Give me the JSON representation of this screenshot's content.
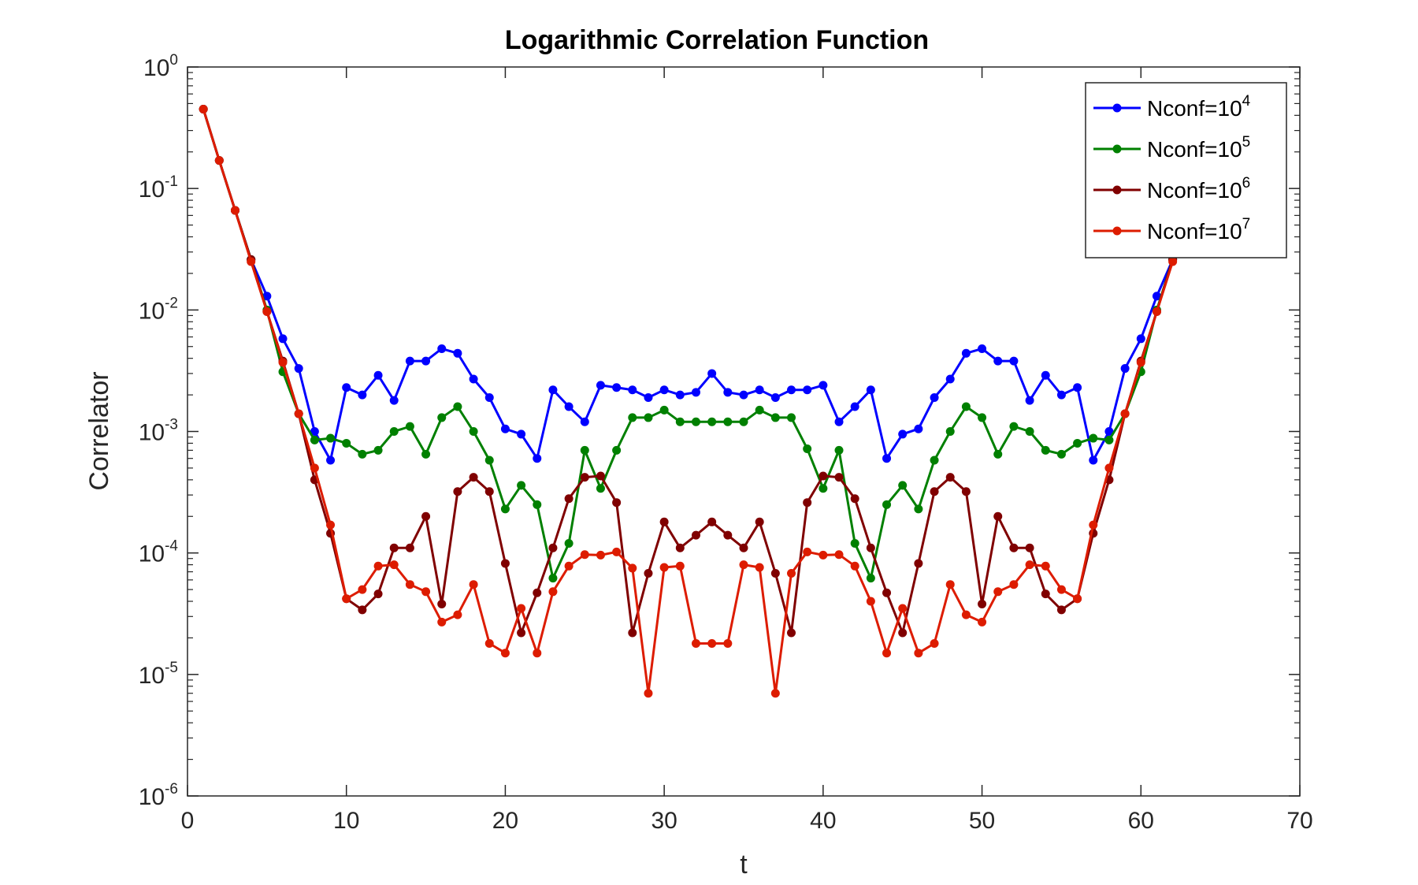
{
  "chart_data": {
    "type": "line",
    "title": "Logarithmic Correlation Function",
    "xlabel": "t",
    "ylabel": "Correlator",
    "xlim": [
      0,
      70
    ],
    "ylim": [
      1e-06,
      1
    ],
    "yscale": "log",
    "grid": false,
    "legend_position": "top-right",
    "x_ticks": [
      "0",
      "10",
      "20",
      "30",
      "40",
      "50",
      "60",
      "70"
    ],
    "y_ticks": [
      {
        "base": "10",
        "exp": "0"
      },
      {
        "base": "10",
        "exp": "-1"
      },
      {
        "base": "10",
        "exp": "-2"
      },
      {
        "base": "10",
        "exp": "-3"
      },
      {
        "base": "10",
        "exp": "-4"
      },
      {
        "base": "10",
        "exp": "-5"
      },
      {
        "base": "10",
        "exp": "-6"
      }
    ],
    "x": [
      1,
      2,
      3,
      4,
      5,
      6,
      7,
      8,
      9,
      10,
      11,
      12,
      13,
      14,
      15,
      16,
      17,
      18,
      19,
      20,
      21,
      22,
      23,
      24,
      25,
      26,
      27,
      28,
      29,
      30,
      31,
      32,
      33,
      34,
      35,
      36,
      37,
      38,
      39,
      40,
      41,
      42,
      43,
      44,
      45,
      46,
      47,
      48,
      49,
      50,
      51,
      52,
      53,
      54,
      55,
      56,
      57,
      58,
      59,
      60,
      61,
      62
    ],
    "series": [
      {
        "name_base": "Nconf=10",
        "name_exp": "4",
        "color": "#0000ff",
        "values": [
          0.45,
          0.17,
          0.066,
          0.026,
          0.013,
          0.0058,
          0.0033,
          0.001,
          0.00058,
          0.0023,
          0.002,
          0.0029,
          0.0018,
          0.0038,
          0.0038,
          0.0048,
          0.0044,
          0.0027,
          0.0019,
          0.00105,
          0.00095,
          0.0006,
          0.0022,
          0.0016,
          0.0012,
          0.0024,
          0.0023,
          0.0022,
          0.0019,
          0.0022,
          0.002,
          0.0021,
          0.003,
          0.0021,
          0.002,
          0.0022,
          0.0019,
          0.0022,
          0.0022,
          0.0024,
          0.0012,
          0.0016,
          0.0022,
          0.0006,
          0.00095,
          0.00105,
          0.0019,
          0.0027,
          0.0044,
          0.0048,
          0.0038,
          0.0038,
          0.0018,
          0.0029,
          0.002,
          0.0023,
          0.00058,
          0.001,
          0.0033,
          0.0058,
          0.013,
          0.026
        ]
      },
      {
        "name_base": "Nconf=10",
        "name_exp": "5",
        "color": "#008000",
        "values": [
          0.45,
          0.17,
          0.066,
          0.026,
          0.01,
          0.0031,
          0.0014,
          0.00085,
          0.00088,
          0.0008,
          0.00065,
          0.0007,
          0.001,
          0.0011,
          0.00065,
          0.0013,
          0.0016,
          0.001,
          0.00058,
          0.00023,
          0.00036,
          0.00025,
          6.2e-05,
          0.00012,
          0.0007,
          0.00034,
          0.0007,
          0.0013,
          0.0013,
          0.0015,
          0.0012,
          0.0012,
          0.0012,
          0.0012,
          0.0012,
          0.0015,
          0.0013,
          0.0013,
          0.00072,
          0.00034,
          0.0007,
          0.00012,
          6.2e-05,
          0.00025,
          0.00036,
          0.00023,
          0.00058,
          0.001,
          0.0016,
          0.0013,
          0.00065,
          0.0011,
          0.001,
          0.0007,
          0.00065,
          0.0008,
          0.00088,
          0.00085,
          0.0014,
          0.0031,
          0.01,
          0.026
        ]
      },
      {
        "name_base": "Nconf=10",
        "name_exp": "6",
        "color": "#800000",
        "values": [
          0.45,
          0.17,
          0.066,
          0.026,
          0.0097,
          0.0038,
          0.0014,
          0.0004,
          0.000145,
          4.2e-05,
          3.4e-05,
          4.6e-05,
          0.00011,
          0.00011,
          0.0002,
          3.8e-05,
          0.00032,
          0.00042,
          0.00032,
          8.2e-05,
          2.2e-05,
          4.7e-05,
          0.00011,
          0.00028,
          0.00042,
          0.00043,
          0.00026,
          2.2e-05,
          6.8e-05,
          0.00018,
          0.00011,
          0.00014,
          0.00018,
          0.00014,
          0.00011,
          0.00018,
          6.8e-05,
          2.2e-05,
          0.00026,
          0.00043,
          0.00042,
          0.00028,
          0.00011,
          4.7e-05,
          2.2e-05,
          8.2e-05,
          0.00032,
          0.00042,
          0.00032,
          3.8e-05,
          0.0002,
          0.00011,
          0.00011,
          4.6e-05,
          3.4e-05,
          4.2e-05,
          0.000145,
          0.0004,
          0.0014,
          0.0038,
          0.0097,
          0.026
        ]
      },
      {
        "name_base": "Nconf=10",
        "name_exp": "7",
        "color": "#dd1c00",
        "values": [
          0.45,
          0.17,
          0.066,
          0.025,
          0.0097,
          0.0037,
          0.0014,
          0.0005,
          0.00017,
          4.2e-05,
          5e-05,
          7.8e-05,
          8e-05,
          5.5e-05,
          4.8e-05,
          2.7e-05,
          3.1e-05,
          5.5e-05,
          1.8e-05,
          1.5e-05,
          3.5e-05,
          1.5e-05,
          4.8e-05,
          7.8e-05,
          9.7e-05,
          9.6e-05,
          0.000102,
          7.5e-05,
          7e-06,
          7.6e-05,
          7.8e-05,
          1.8e-05,
          1.8e-05,
          1.8e-05,
          8e-05,
          7.6e-05,
          7e-06,
          6.8e-05,
          0.000102,
          9.6e-05,
          9.7e-05,
          7.8e-05,
          4e-05,
          1.5e-05,
          3.5e-05,
          1.5e-05,
          1.8e-05,
          5.5e-05,
          3.1e-05,
          2.7e-05,
          4.8e-05,
          5.5e-05,
          8e-05,
          7.8e-05,
          5e-05,
          4.2e-05,
          0.00017,
          0.0005,
          0.0014,
          0.0037,
          0.0097,
          0.025
        ]
      }
    ]
  }
}
